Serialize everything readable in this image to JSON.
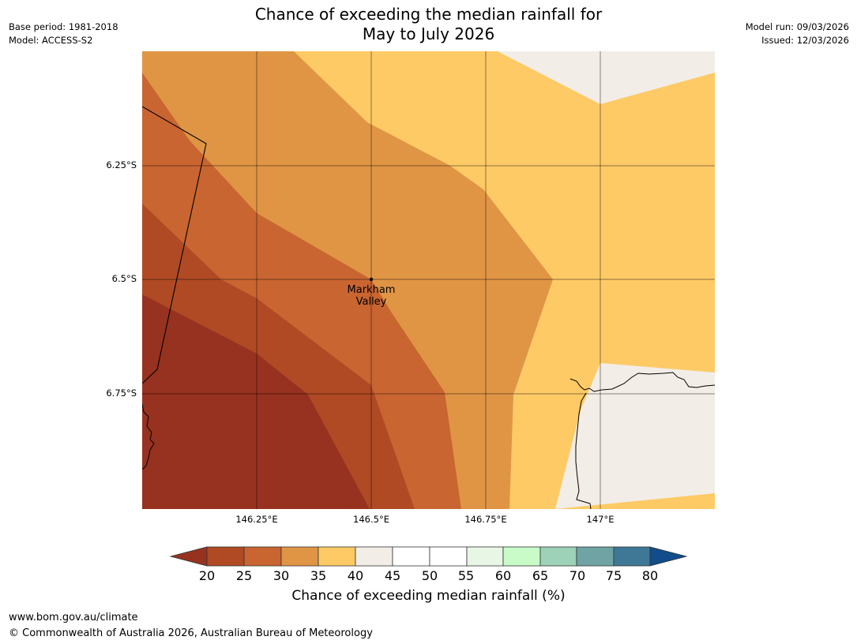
{
  "header": {
    "title_line1": "Chance of exceeding the median rainfall for",
    "title_line2": "May to July 2026",
    "base_period": "Base period: 1981-2018",
    "model": "Model: ACCESS-S2",
    "model_run": "Model run: 09/03/2026",
    "issued": "Issued: 12/03/2026"
  },
  "map": {
    "lat_labels": [
      "6.25°S",
      "6.5°S",
      "6.75°S"
    ],
    "lon_labels": [
      "146.25°E",
      "146.5°E",
      "146.75°E",
      "147°E"
    ],
    "place": {
      "name_line1": "Markham",
      "name_line2": "Valley",
      "lat": -6.5,
      "lon": 146.5
    }
  },
  "colorbar": {
    "ticks": [
      "20",
      "25",
      "30",
      "35",
      "40",
      "45",
      "50",
      "55",
      "60",
      "65",
      "70",
      "75",
      "80"
    ],
    "label": "Chance of exceeding median rainfall (%)",
    "colors": {
      "below_20": "#973220",
      "20-25": "#b04a24",
      "25-30": "#c96531",
      "30-35": "#e09545",
      "35-40": "#fdca66",
      "40-45": "#f2ede6",
      "45-55": "#ffffff",
      "55-60": "#e8f6e6",
      "60-65": "#c8fbc8",
      "65-70": "#9dd1b8",
      "70-75": "#6fa3a4",
      "75-80": "#3f7897",
      "above_80": "#124c8a"
    }
  },
  "footer": {
    "url": "www.bom.gov.au/climate",
    "copyright": "© Commonwealth of Australia 2026, Australian Bureau of Meteorology"
  }
}
